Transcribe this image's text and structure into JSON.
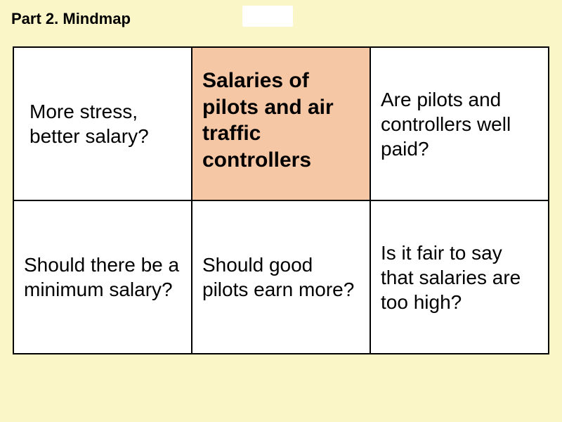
{
  "page": {
    "background_color": "#fbf6c8",
    "title": "Part 2. Mindmap"
  },
  "grid": {
    "type": "table",
    "columns": 3,
    "rows": 2,
    "border_color": "#000000",
    "cell_background": "#ffffff",
    "highlight_background": "#f6c7a4",
    "font_family": "Arial",
    "font_size_pt": 21,
    "title_font_size_pt": 22,
    "title_font_weight": "bold",
    "cells": {
      "r0c0": "More stress, better salary?",
      "r0c1": "Salaries of pilots and air traffic controllers",
      "r0c2": "Are pilots and controllers well paid?",
      "r1c0": "Should there be a minimum salary?",
      "r1c1": "Should good pilots earn more?",
      "r1c2": "Is it fair to say that salaries are too high?"
    }
  }
}
